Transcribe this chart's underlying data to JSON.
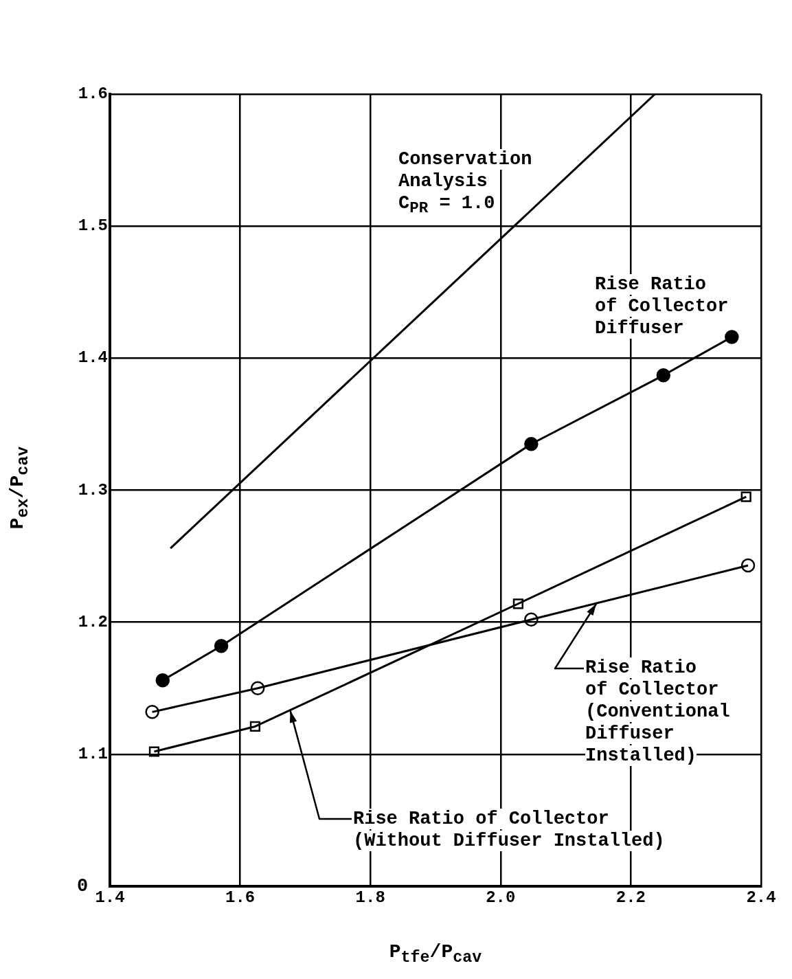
{
  "chart_data": {
    "type": "line",
    "xlabel": "P$_{tfe}$/P$_{cav}$",
    "ylabel": "P$_{ex}$/P$_{cav}$",
    "xlim": [
      1.4,
      2.4
    ],
    "xticks": [
      1.4,
      1.6,
      1.8,
      {
        "value": 2.0,
        "label": "2.0"
      },
      2.2,
      2.4
    ],
    "ylim": [
      1.0,
      1.6
    ],
    "yticks": [
      1.1,
      1.2,
      1.3,
      1.4,
      1.5,
      1.6
    ],
    "grid": true,
    "legend": false,
    "series": [
      {
        "color": "#000000",
        "x": [
          1.493,
          2.237
        ],
        "values": [
          1.256,
          1.6
        ],
        "marker": "none"
      },
      {
        "color": "#000000",
        "x": [
          1.481,
          1.571,
          2.047,
          2.25,
          2.355
        ],
        "values": [
          1.156,
          1.182,
          1.335,
          1.387,
          1.416
        ],
        "marker": "circle"
      },
      {
        "color": "#000000",
        "x": [
          1.468,
          1.623,
          2.027,
          2.377
        ],
        "values": [
          1.102,
          1.121,
          1.214,
          1.295
        ],
        "marker": "square"
      },
      {
        "color": "#000000",
        "x": [
          1.465,
          1.627,
          2.047,
          2.38
        ],
        "values": [
          1.132,
          1.15,
          1.202,
          1.243
        ],
        "marker": "circle"
      }
    ],
    "annotations": [
      "Conservation\nAnalysis\nC$_{PR}$ = 1.0",
      "Rise Ratio\nof Collector\nDiffuser",
      {
        "text": "Rise Ratio\nof Collector\n(Conventional\nDiffuser\nInstalled)",
        "x": 2.147,
        "y": 1.214
      },
      {
        "text": "Rise Ratio of Collector\n(Without Diffuser Installed)",
        "x": 1.677,
        "y": 1.133
      },
      "0"
    ]
  }
}
